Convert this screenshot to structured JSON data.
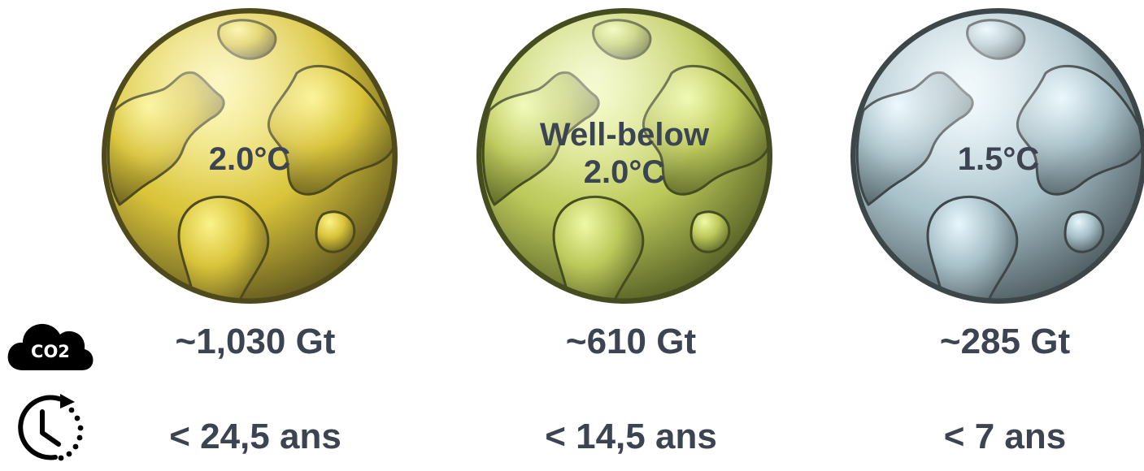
{
  "scenarios": [
    {
      "label_lines": [
        "2.0°C"
      ],
      "budget": "~1,030 Gt",
      "duration": "< 24,5 ans",
      "colors": {
        "light": "#fbf28a",
        "mid": "#d9c43a",
        "dark": "#5e561f",
        "rim": "#4e4a1c"
      }
    },
    {
      "label_lines": [
        "Well-below",
        "2.0°C"
      ],
      "budget": "~610 Gt",
      "duration": "< 14,5 ans",
      "colors": {
        "light": "#eef9a6",
        "mid": "#bcc95a",
        "dark": "#535d24",
        "rim": "#454d20"
      }
    },
    {
      "label_lines": [
        "1.5°C"
      ],
      "budget": "~285 Gt",
      "duration": "< 7 ans",
      "colors": {
        "light": "#e7f7fd",
        "mid": "#a9c1c9",
        "dark": "#4c5a5f",
        "rim": "#3d4649"
      }
    }
  ],
  "icons": {
    "co2": {
      "name": "co2-cloud-icon",
      "text": "CO2"
    },
    "timer": {
      "name": "clock-timer-icon"
    }
  },
  "text_color": "#3d4451"
}
